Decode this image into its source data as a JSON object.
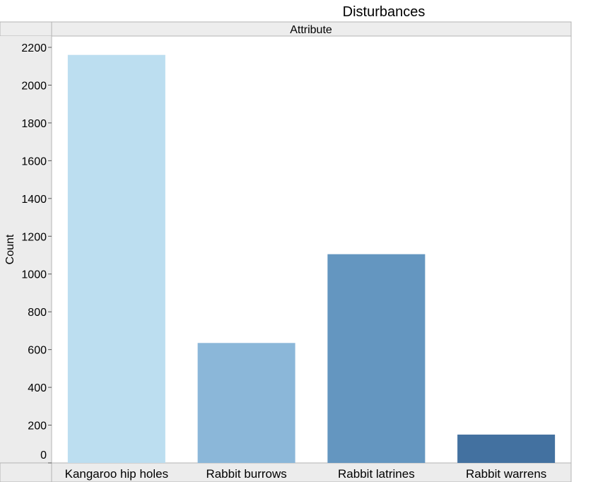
{
  "chart_data": {
    "type": "bar",
    "title": "Disturbances",
    "facet_label": "Attribute",
    "ylabel": "Count",
    "xlabel": "",
    "categories": [
      "Kangaroo hip holes",
      "Rabbit burrows",
      "Rabbit latrines",
      "Rabbit warrens"
    ],
    "values": [
      2160,
      635,
      1105,
      150
    ],
    "colors": [
      "#bcdef0",
      "#8bb7d9",
      "#6496c0",
      "#4371a0"
    ],
    "ylim": [
      0,
      2200
    ],
    "yticks": [
      0,
      200,
      400,
      600,
      800,
      1000,
      1200,
      1400,
      1600,
      1800,
      2000,
      2200
    ],
    "grid": false,
    "legend": "none"
  }
}
